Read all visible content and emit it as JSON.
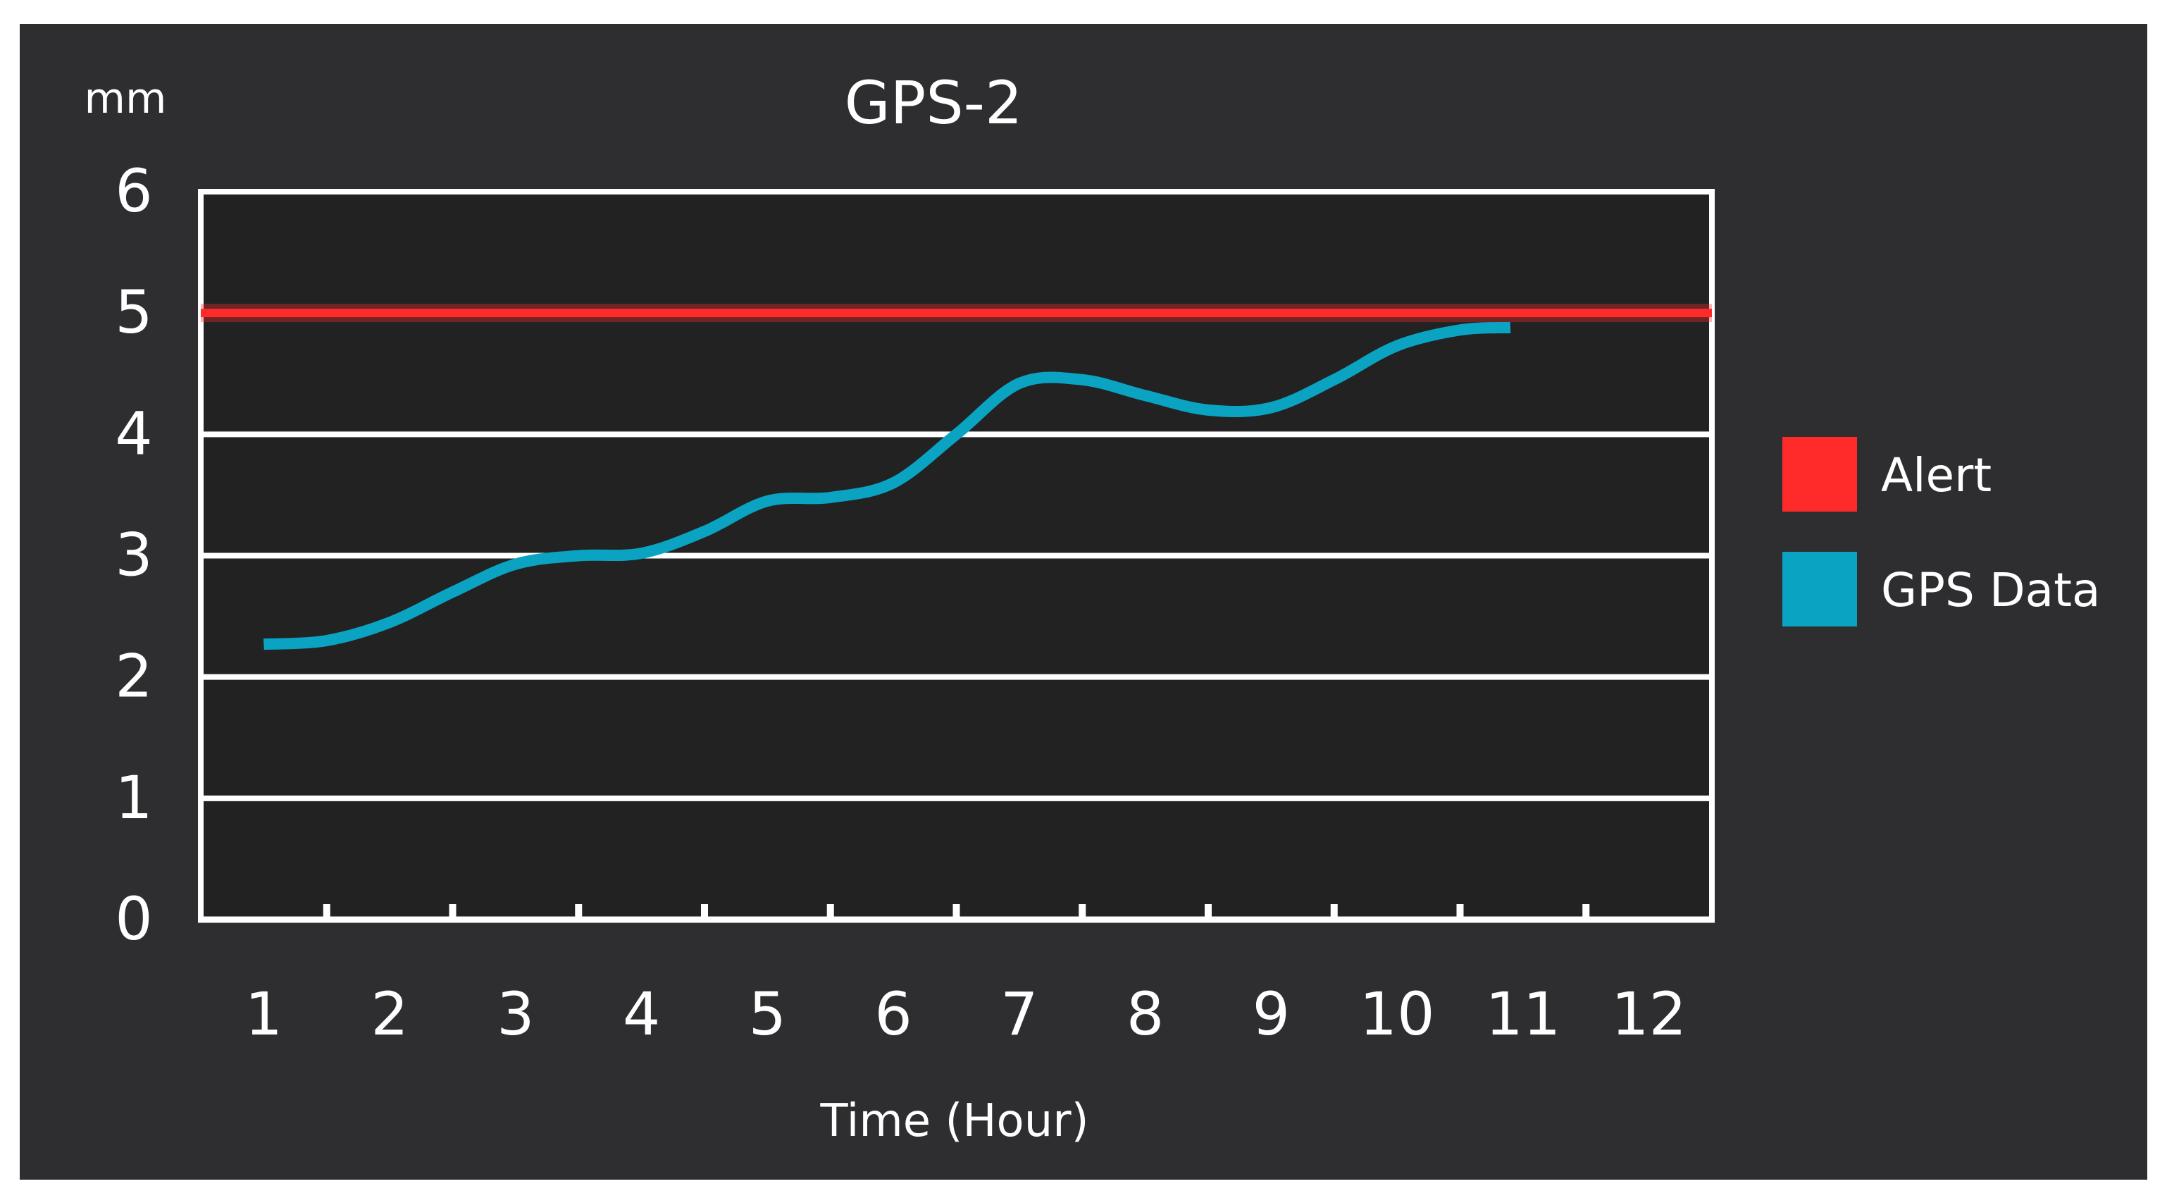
{
  "chart_data": {
    "type": "line",
    "title": "GPS-2",
    "ylabel": "mm",
    "xlabel": "Time (Hour)",
    "ylim": [
      0,
      6
    ],
    "yticks": [
      0,
      1,
      2,
      3,
      4,
      5,
      6
    ],
    "xticks": [
      1,
      2,
      3,
      4,
      5,
      6,
      7,
      8,
      9,
      10,
      11,
      12
    ],
    "grid": true,
    "legend_position": "right",
    "series": [
      {
        "name": "Alert",
        "color": "#ff2b2b",
        "x": [
          0.5,
          12.5
        ],
        "y": [
          5.0,
          5.0
        ]
      },
      {
        "name": "GPS Data",
        "color": "#0aa3c2",
        "x": [
          1.0,
          1.5,
          2.0,
          2.5,
          3.0,
          3.5,
          4.0,
          4.5,
          5.0,
          5.5,
          6.0,
          6.5,
          7.0,
          7.5,
          8.0,
          8.5,
          9.0,
          9.5,
          10.0,
          10.5,
          10.9
        ],
        "y": [
          2.27,
          2.3,
          2.45,
          2.7,
          2.93,
          3.0,
          3.02,
          3.2,
          3.45,
          3.48,
          3.6,
          4.0,
          4.42,
          4.45,
          4.32,
          4.2,
          4.22,
          4.45,
          4.73,
          4.86,
          4.88
        ]
      }
    ]
  },
  "colors": {
    "background": "#2e2d2f",
    "plot_background": "#222222",
    "grid": "#ffffff",
    "text": "#ffffff"
  }
}
